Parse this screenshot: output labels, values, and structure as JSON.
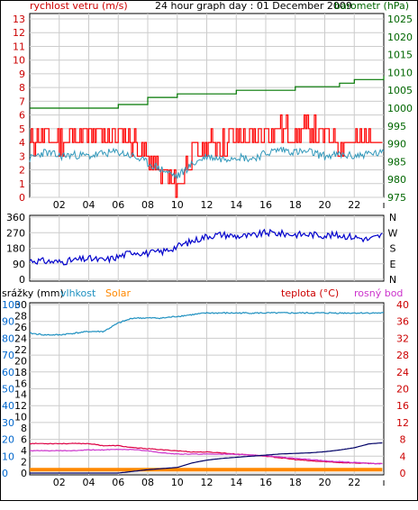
{
  "header": {
    "left_label": "rychlost vetru (m/s)",
    "title": "24 hour graph day : 01 December 2009",
    "right_label": "barometr (hPa)",
    "left_color": "#cc0000",
    "right_color": "#006600"
  },
  "bottom_header": {
    "rain_label": "srážky (mm)",
    "humidity_label": "vlhkost",
    "solar_label": "Solar",
    "temp_label": "teplota (°C)",
    "dew_label": "rosný bod"
  },
  "colors": {
    "wind": "#ff0000",
    "gust": "#ff0000",
    "wind_avg": "#3399bb",
    "pressure": "#007700",
    "direction": "#0000cc",
    "humidity": "#1e90c0",
    "solar": "#ff8800",
    "temperature": "#dd0044",
    "dewpoint": "#cc33cc",
    "rain": "#000066",
    "grid": "#cccccc",
    "axis_left_blue": "#0066cc",
    "axis_right_red": "#cc0000"
  },
  "x_tick_labels": [
    "02",
    "04",
    "06",
    "08",
    "10",
    "12",
    "14",
    "16",
    "18",
    "20",
    "22"
  ],
  "chart_data": [
    {
      "type": "line",
      "name": "wind-and-pressure",
      "x_hours": [
        0,
        1,
        2,
        3,
        4,
        5,
        6,
        7,
        8,
        9,
        10,
        11,
        12,
        13,
        14,
        15,
        16,
        17,
        18,
        19,
        20,
        21,
        22,
        23,
        24
      ],
      "series": [
        {
          "name": "rychlost vetru",
          "axis": "left",
          "values": [
            4,
            4.5,
            4,
            4.5,
            4.2,
            4.5,
            4.5,
            4,
            3,
            1.5,
            1,
            3,
            3.8,
            4,
            4.5,
            4,
            5,
            5,
            4.5,
            5,
            4.5,
            4,
            4,
            4.5,
            4.5
          ]
        },
        {
          "name": "wind_avg",
          "axis": "left",
          "values": [
            2.8,
            3.3,
            3,
            3.1,
            3,
            3.2,
            3.3,
            3,
            2.5,
            2,
            1.5,
            2.4,
            3,
            2.8,
            3,
            2.8,
            3.2,
            3.5,
            3.3,
            3.3,
            3,
            3.1,
            3,
            3.2,
            3.2
          ]
        },
        {
          "name": "barometr",
          "axis": "right",
          "values": [
            1000,
            1000,
            1000,
            1000,
            1000,
            1000,
            1001,
            1001,
            1003,
            1003,
            1004,
            1004,
            1004,
            1004,
            1005,
            1005,
            1005,
            1005,
            1006,
            1006,
            1006,
            1007,
            1008,
            1008,
            1009
          ]
        }
      ],
      "y_left": {
        "min": 0,
        "max": 13,
        "ticks": [
          0,
          1,
          2,
          3,
          4,
          5,
          6,
          7,
          8,
          9,
          10,
          11,
          12,
          13
        ]
      },
      "y_right": {
        "min": 975,
        "max": 1025,
        "ticks": [
          975,
          980,
          985,
          990,
          995,
          1000,
          1005,
          1010,
          1015,
          1020,
          1025
        ]
      }
    },
    {
      "type": "line",
      "name": "wind-direction",
      "x_hours": [
        0,
        1,
        2,
        3,
        4,
        5,
        6,
        7,
        8,
        9,
        10,
        11,
        12,
        13,
        14,
        15,
        16,
        17,
        18,
        19,
        20,
        21,
        22,
        23,
        24
      ],
      "series": [
        {
          "name": "direction",
          "values": [
            110,
            105,
            100,
            110,
            120,
            110,
            130,
            160,
            150,
            160,
            190,
            220,
            250,
            260,
            250,
            250,
            270,
            265,
            260,
            260,
            255,
            255,
            245,
            230,
            260
          ]
        }
      ],
      "y_left": {
        "min": 0,
        "max": 360,
        "ticks": [
          0,
          90,
          180,
          270,
          360
        ]
      },
      "y_right_labels": [
        "N",
        "E",
        "S",
        "W",
        "N"
      ]
    },
    {
      "type": "line",
      "name": "humidity-temperature-rain",
      "x_hours": [
        0,
        1,
        2,
        3,
        4,
        5,
        6,
        7,
        8,
        9,
        10,
        11,
        12,
        13,
        14,
        15,
        16,
        17,
        18,
        19,
        20,
        21,
        22,
        23,
        24
      ],
      "series": [
        {
          "name": "vlhkost",
          "axis": "left_pct",
          "values": [
            83,
            82,
            82,
            83,
            84,
            84,
            89,
            92,
            92,
            92,
            93,
            94,
            95,
            95,
            95,
            95,
            95,
            95,
            95,
            95,
            95,
            95,
            95,
            95,
            95
          ]
        },
        {
          "name": "teplota",
          "axis": "right",
          "values": [
            7,
            7,
            7,
            7,
            7,
            6.5,
            6.5,
            6,
            5.8,
            5.5,
            5.3,
            5,
            5,
            4.8,
            4.5,
            4.3,
            4,
            3.6,
            3.2,
            2.9,
            2.7,
            2.5,
            2.4,
            2.3,
            2.2
          ]
        },
        {
          "name": "rosný bod",
          "axis": "right",
          "values": [
            5.3,
            5.3,
            5.3,
            5.3,
            5.5,
            5.5,
            5.6,
            5.6,
            5.3,
            4.8,
            4.5,
            4.5,
            4.5,
            4.5,
            4.4,
            4.3,
            4.1,
            3.8,
            3.5,
            3.2,
            2.9,
            2.7,
            2.5,
            2.3,
            2.2
          ]
        },
        {
          "name": "srážky",
          "axis": "left_mm",
          "values": [
            0,
            0,
            0,
            0,
            0,
            0,
            0,
            0.3,
            0.6,
            0.8,
            1,
            1.8,
            2.3,
            2.6,
            2.8,
            3,
            3.2,
            3.4,
            3.5,
            3.6,
            3.8,
            4.1,
            4.5,
            5.2,
            5.4
          ]
        },
        {
          "name": "Solar",
          "axis": "left_mm",
          "values": [
            0.6,
            0.6,
            0.6,
            0.6,
            0.6,
            0.6,
            0.6,
            0.6,
            0.6,
            0.6,
            0.6,
            0.6,
            0.6,
            0.6,
            0.6,
            0.6,
            0.6,
            0.6,
            0.6,
            0.6,
            0.6,
            0.6,
            0.6,
            0.6,
            0.6
          ]
        }
      ],
      "y_left_mm": {
        "min": 0,
        "max": 30,
        "ticks": [
          0,
          2,
          4,
          6,
          8,
          10,
          12,
          14,
          16,
          18,
          20,
          22,
          24,
          26,
          28,
          30
        ]
      },
      "y_left_pct": {
        "min": 0,
        "max": 100,
        "ticks": [
          0,
          10,
          20,
          30,
          40,
          50,
          60,
          70,
          80,
          90,
          100
        ]
      },
      "y_right": {
        "min": 0,
        "max": 40,
        "ticks": [
          0,
          4,
          8,
          12,
          16,
          20,
          24,
          28,
          32,
          36,
          40
        ]
      }
    }
  ]
}
